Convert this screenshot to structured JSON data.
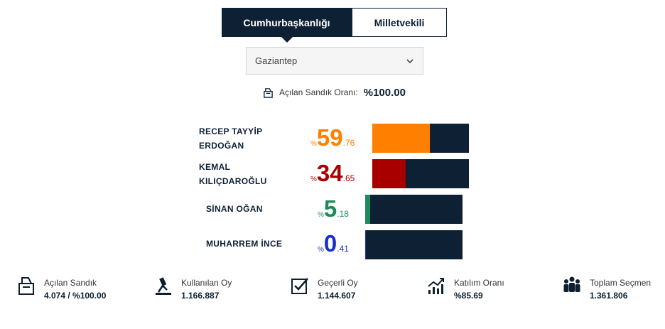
{
  "tabs": [
    {
      "label": "Cumhurbaşkanlığı",
      "active": true
    },
    {
      "label": "Milletvekili",
      "active": false
    }
  ],
  "province_select": {
    "value": "Gaziantep"
  },
  "opened_ballot": {
    "label": "Açılan Sandık Oranı:",
    "value": "%100.00"
  },
  "candidates": [
    {
      "name_line1": "RECEP TAYYİP",
      "name_line2": "ERDOĞAN",
      "pct_symbol": "%",
      "pct_int": "59",
      "pct_dec": ".76",
      "share": 59.76,
      "color": "#ff7f00"
    },
    {
      "name_line1": "KEMAL",
      "name_line2": "KILIÇDAROĞLU",
      "pct_symbol": "%",
      "pct_int": "34",
      "pct_dec": ".65",
      "share": 34.65,
      "color": "#a80000"
    },
    {
      "name_line1": "SİNAN OĞAN",
      "pct_symbol": "%",
      "pct_int": "5",
      "pct_dec": ".18",
      "share": 5.18,
      "color": "#1e8a5e"
    },
    {
      "name_line1": "MUHARREM İNCE",
      "pct_symbol": "%",
      "pct_int": "0",
      "pct_dec": ".41",
      "share": 0.41,
      "color": "#1a2ec9"
    }
  ],
  "stats": [
    {
      "label": "Açılan Sandık",
      "value": "4.074 / %100.00",
      "icon": "ballot-box-icon"
    },
    {
      "label": "Kullanılan Oy",
      "value": "1.166.887",
      "icon": "vote-cast-icon"
    },
    {
      "label": "Geçerli Oy",
      "value": "1.144.607",
      "icon": "checkbox-icon"
    },
    {
      "label": "Katılım Oranı",
      "value": "%85.69",
      "icon": "rising-chart-icon"
    },
    {
      "label": "Toplam Seçmen",
      "value": "1.361.806",
      "icon": "people-group-icon"
    }
  ]
}
